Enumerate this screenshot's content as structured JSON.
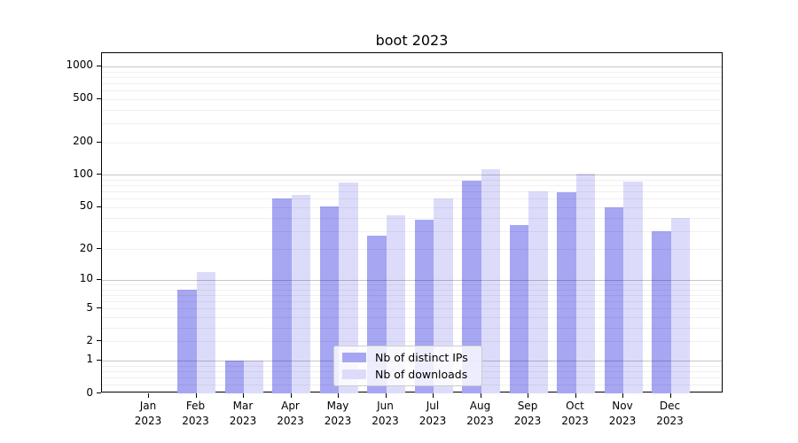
{
  "title": "boot 2023",
  "chart_data": {
    "type": "bar",
    "title": "boot 2023",
    "xlabel": "",
    "ylabel": "",
    "categories": [
      "Jan 2023",
      "Feb 2023",
      "Mar 2023",
      "Apr 2023",
      "May 2023",
      "Jun 2023",
      "Jul 2023",
      "Aug 2023",
      "Sep 2023",
      "Oct 2023",
      "Nov 2023",
      "Dec 2023"
    ],
    "series": [
      {
        "name": "Nb of distinct IPs",
        "color": "#a6a6f3",
        "values": [
          0,
          8,
          1,
          60,
          51,
          27,
          38,
          88,
          34,
          69,
          50,
          30
        ]
      },
      {
        "name": "Nb of downloads",
        "color": "#dcdcfa",
        "values": [
          0,
          12,
          1,
          65,
          85,
          42,
          60,
          112,
          70,
          103,
          87,
          40
        ]
      }
    ],
    "yscale": "log1p",
    "ylim": [
      0,
      1320
    ],
    "yticks": [
      0,
      1,
      2,
      5,
      10,
      20,
      50,
      100,
      200,
      500,
      1000
    ],
    "grid": "both",
    "grid_major_values": [
      1,
      10,
      100,
      1000
    ],
    "legend_position": "lower-center"
  },
  "colors": {
    "major_grid": "rgba(0,0,0,0.22)",
    "minor_grid": "rgba(0,0,0,0.06)",
    "spine": "#000000",
    "legend_border": "#cccccc"
  }
}
